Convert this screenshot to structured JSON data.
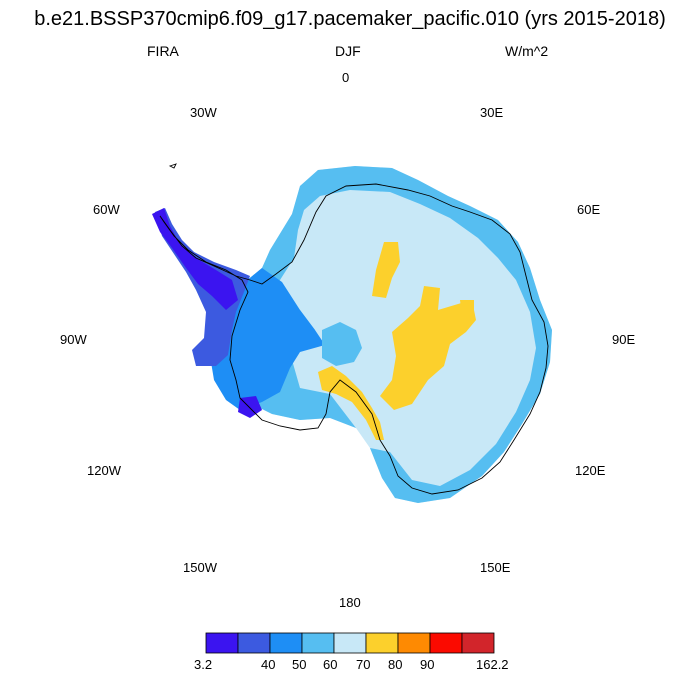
{
  "title": "b.e21.BSSP370cmip6.f09_g17.pacemaker_pacific.010 (yrs 2015-2018)",
  "variable": "FIRA",
  "season": "DJF",
  "units": "W/m^2",
  "longitude_labels": {
    "lon_0": "0",
    "lon_30E": "30E",
    "lon_60E": "60E",
    "lon_90E": "90E",
    "lon_120E": "120E",
    "lon_150E": "150E",
    "lon_180": "180",
    "lon_150W": "150W",
    "lon_120W": "120W",
    "lon_90W": "90W",
    "lon_60W": "60W",
    "lon_30W": "30W"
  },
  "colorbar": {
    "colors": [
      "#3b14f0",
      "#3c5ae0",
      "#1e8ef5",
      "#56bef1",
      "#c8e8f7",
      "#fcd02c",
      "#fe8a02",
      "#fb0a00",
      "#d2252b"
    ],
    "tick_labels": [
      "3.2",
      "40",
      "50",
      "60",
      "70",
      "80",
      "90",
      "162.2"
    ]
  },
  "map": {
    "projection": "south polar stereographic",
    "region": "Antarctica",
    "dominant_colors": {
      "interior": "#c8e8f7",
      "coast": "#56bef1",
      "west_coast": "#1e8ef5",
      "peninsula": "#3b14f0",
      "plateau_patches": "#fcd02c"
    }
  }
}
